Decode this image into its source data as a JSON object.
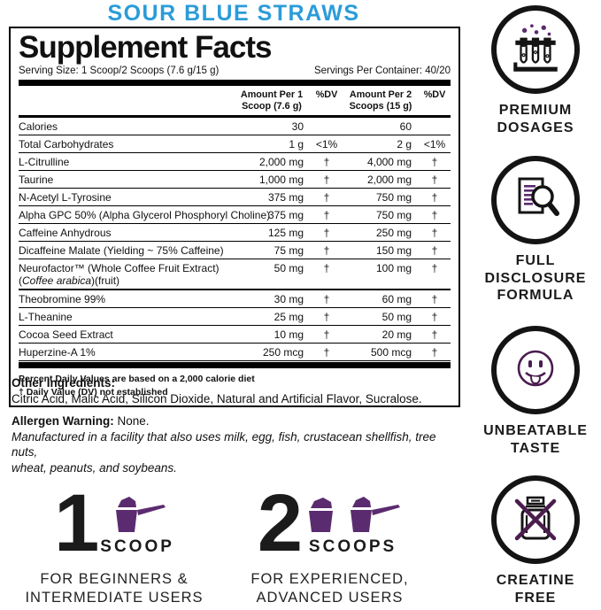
{
  "product_title": "SOUR BLUE STRAWS",
  "colors": {
    "accent_blue": "#2B9CD8",
    "accent_purple": "#5B2B6F",
    "icon_purple": "#4A1D4E",
    "text_black": "#141414"
  },
  "panel": {
    "title": "Supplement Facts",
    "serving_size": "Serving Size: 1 Scoop/2 Scoops (7.6 g/15 g)",
    "servings_per_container": "Servings Per Container: 40/20",
    "col_headers": {
      "amount1": "Amount Per 1\nScoop (7.6 g)",
      "dv1": "%DV",
      "amount2": "Amount Per 2\nScoops (15 g)",
      "dv2": "%DV"
    },
    "rows": [
      {
        "name": "Calories",
        "amt1": "30",
        "dv1": "",
        "amt2": "60",
        "dv2": ""
      },
      {
        "name": "Total Carbohydrates",
        "amt1": "1 g",
        "dv1": "<1%",
        "amt2": "2 g",
        "dv2": "<1%"
      },
      {
        "name": "L-Citrulline",
        "amt1": "2,000 mg",
        "dv1": "†",
        "amt2": "4,000 mg",
        "dv2": "†"
      },
      {
        "name": "Taurine",
        "amt1": "1,000 mg",
        "dv1": "†",
        "amt2": "2,000 mg",
        "dv2": "†"
      },
      {
        "name": "N-Acetyl L-Tyrosine",
        "amt1": "375 mg",
        "dv1": "†",
        "amt2": "750 mg",
        "dv2": "†"
      },
      {
        "name": "Alpha GPC 50% (Alpha Glycerol Phosphoryl Choline)",
        "amt1": "375 mg",
        "dv1": "†",
        "amt2": "750 mg",
        "dv2": "†"
      },
      {
        "name": "Caffeine Anhydrous",
        "amt1": "125 mg",
        "dv1": "†",
        "amt2": "250 mg",
        "dv2": "†"
      },
      {
        "name": "Dicaffeine Malate (Yielding ~ 75% Caffeine)",
        "amt1": "75 mg",
        "dv1": "†",
        "amt2": "150 mg",
        "dv2": "†"
      },
      {
        "name": "Neurofactor™ (Whole Coffee Fruit Extract)",
        "name2_parts": [
          {
            "t": "(",
            "i": false
          },
          {
            "t": "Coffee arabica",
            "i": true
          },
          {
            "t": ")(fruit)",
            "i": false
          }
        ],
        "thick_bottom": true,
        "amt1": "50 mg",
        "dv1": "†",
        "amt2": "100 mg",
        "dv2": "†"
      },
      {
        "name": "Theobromine 99%",
        "amt1": "30 mg",
        "dv1": "†",
        "amt2": "60 mg",
        "dv2": "†"
      },
      {
        "name": "L-Theanine",
        "amt1": "25 mg",
        "dv1": "†",
        "amt2": "50 mg",
        "dv2": "†"
      },
      {
        "name": "Cocoa Seed Extract",
        "amt1": "10 mg",
        "dv1": "†",
        "amt2": "20 mg",
        "dv2": "†"
      },
      {
        "name": "Huperzine-A 1%",
        "amt1": "250 mcg",
        "dv1": "†",
        "amt2": "500 mcg",
        "dv2": "†"
      }
    ],
    "footnote1": "Percent Daily Values are based on a 2,000 calorie diet",
    "footnote2": "† Daily Value (DV) not established"
  },
  "other_ingredients": {
    "label": "Other Ingredients:",
    "text": "Citric Acid, Malic Acid, Silicon Dioxide, Natural and Artificial Flavor, Sucralose."
  },
  "allergen": {
    "label": "Allergen Warning:",
    "text": "None.",
    "disclaimer": "Manufactured in a facility that also uses milk, egg, fish, crustacean shellfish, tree nuts,\nwheat, peanuts, and soybeans."
  },
  "servings_guide": [
    {
      "number": "1",
      "unit": "SCOOP",
      "audience": "FOR BEGINNERS &\nINTERMEDIATE USERS"
    },
    {
      "number": "2",
      "unit": "SCOOPS",
      "audience": "FOR EXPERIENCED,\nADVANCED USERS"
    }
  ],
  "features": [
    {
      "icon": "test-tubes-icon",
      "label": "PREMIUM\nDOSAGES"
    },
    {
      "icon": "document-magnifier-icon",
      "label": "FULL\nDISCLOSURE\nFORMULA"
    },
    {
      "icon": "smiley-tongue-icon",
      "label": "UNBEATABLE\nTASTE"
    },
    {
      "icon": "no-creatine-icon",
      "label": "CREATINE\nFREE"
    }
  ]
}
